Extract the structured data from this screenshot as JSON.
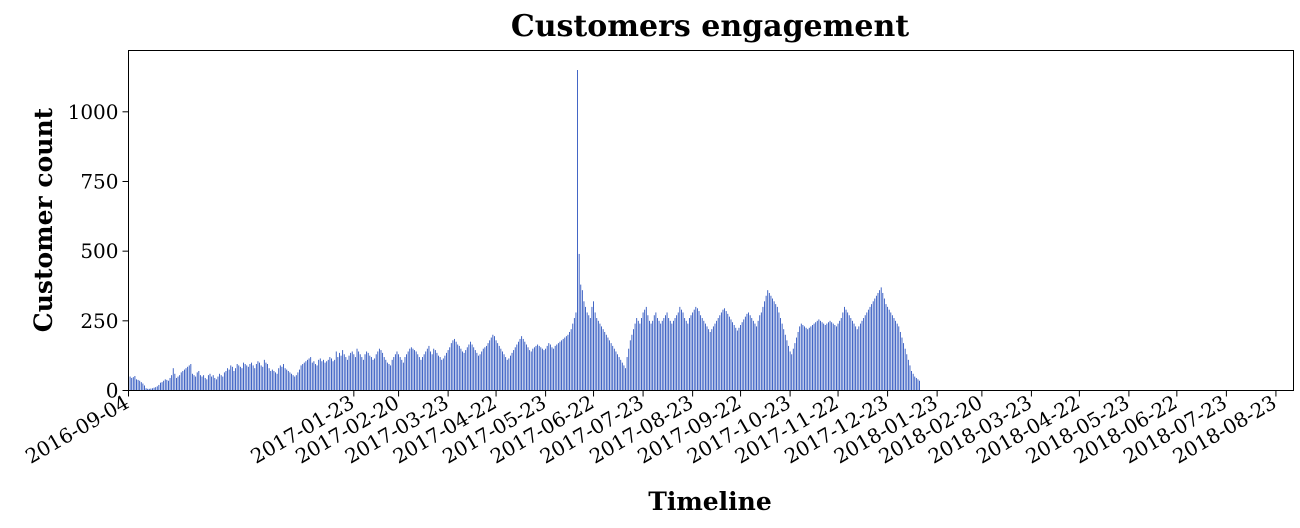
{
  "chart_data": {
    "type": "bar",
    "title": "Customers engagement",
    "xlabel": "Timeline",
    "ylabel": "Customer count",
    "yticks": [
      0,
      250,
      500,
      750,
      1000
    ],
    "ylim": [
      0,
      1220
    ],
    "xlim": [
      "2016-09-04",
      "2018-09-03"
    ],
    "grid": false,
    "legend": "none",
    "bar_color": "#2a52be",
    "xticks": [
      "2016-09-04",
      "2017-01-23",
      "2017-02-20",
      "2017-03-23",
      "2017-04-22",
      "2017-05-23",
      "2017-06-22",
      "2017-07-23",
      "2017-08-23",
      "2017-09-22",
      "2017-10-23",
      "2017-11-22",
      "2017-12-23",
      "2018-01-23",
      "2018-02-20",
      "2018-03-23",
      "2018-04-22",
      "2018-05-23",
      "2018-06-22",
      "2018-07-23",
      "2018-08-23"
    ],
    "x_start": "2016-09-04",
    "values": [
      60,
      50,
      45,
      48,
      52,
      40,
      38,
      35,
      30,
      25,
      18,
      8,
      6,
      6,
      7,
      8,
      10,
      12,
      15,
      20,
      28,
      30,
      35,
      40,
      38,
      35,
      45,
      55,
      80,
      60,
      45,
      50,
      55,
      65,
      70,
      75,
      80,
      85,
      90,
      95,
      60,
      55,
      50,
      65,
      70,
      55,
      50,
      55,
      45,
      40,
      55,
      60,
      50,
      55,
      45,
      40,
      50,
      60,
      55,
      50,
      65,
      70,
      80,
      75,
      90,
      85,
      70,
      80,
      95,
      90,
      85,
      80,
      100,
      95,
      90,
      85,
      95,
      100,
      90,
      80,
      95,
      105,
      100,
      90,
      85,
      110,
      100,
      95,
      80,
      70,
      75,
      70,
      65,
      60,
      80,
      90,
      85,
      95,
      80,
      75,
      70,
      65,
      60,
      55,
      50,
      55,
      65,
      75,
      90,
      95,
      100,
      105,
      110,
      115,
      120,
      100,
      105,
      95,
      90,
      110,
      115,
      105,
      110,
      100,
      105,
      110,
      120,
      115,
      105,
      110,
      140,
      120,
      135,
      125,
      145,
      130,
      120,
      110,
      125,
      135,
      140,
      130,
      120,
      150,
      140,
      130,
      120,
      110,
      130,
      140,
      135,
      125,
      120,
      110,
      115,
      130,
      140,
      150,
      145,
      135,
      120,
      110,
      100,
      95,
      90,
      110,
      120,
      130,
      140,
      130,
      120,
      110,
      100,
      120,
      130,
      140,
      150,
      155,
      150,
      145,
      140,
      130,
      120,
      110,
      120,
      130,
      140,
      150,
      160,
      140,
      130,
      150,
      145,
      135,
      125,
      120,
      110,
      115,
      125,
      135,
      145,
      155,
      170,
      180,
      185,
      175,
      165,
      160,
      150,
      140,
      135,
      145,
      155,
      165,
      175,
      165,
      155,
      145,
      135,
      125,
      130,
      140,
      150,
      155,
      160,
      170,
      180,
      190,
      200,
      195,
      180,
      170,
      160,
      150,
      140,
      130,
      120,
      110,
      115,
      125,
      135,
      145,
      155,
      165,
      175,
      185,
      195,
      185,
      175,
      165,
      155,
      145,
      140,
      150,
      155,
      160,
      165,
      160,
      155,
      150,
      145,
      150,
      160,
      170,
      165,
      155,
      150,
      160,
      165,
      170,
      175,
      180,
      185,
      190,
      195,
      200,
      210,
      220,
      240,
      260,
      280,
      1150,
      490,
      380,
      360,
      320,
      300,
      280,
      270,
      260,
      300,
      320,
      280,
      260,
      250,
      240,
      230,
      220,
      210,
      200,
      190,
      180,
      170,
      160,
      150,
      140,
      130,
      120,
      110,
      100,
      90,
      80,
      120,
      150,
      180,
      200,
      220,
      240,
      260,
      250,
      240,
      260,
      280,
      290,
      300,
      270,
      250,
      240,
      250,
      270,
      280,
      260,
      250,
      240,
      250,
      260,
      270,
      280,
      260,
      250,
      240,
      250,
      260,
      270,
      280,
      300,
      290,
      280,
      260,
      250,
      240,
      260,
      270,
      280,
      290,
      300,
      295,
      285,
      270,
      260,
      250,
      240,
      230,
      220,
      210,
      220,
      230,
      240,
      250,
      260,
      270,
      280,
      290,
      295,
      285,
      275,
      265,
      255,
      245,
      235,
      225,
      215,
      225,
      235,
      245,
      255,
      265,
      275,
      280,
      270,
      260,
      250,
      240,
      230,
      250,
      270,
      280,
      300,
      320,
      340,
      360,
      350,
      340,
      330,
      320,
      310,
      300,
      280,
      260,
      240,
      220,
      200,
      180,
      160,
      140,
      130,
      150,
      170,
      190,
      210,
      230,
      240,
      235,
      230,
      225,
      220,
      225,
      230,
      235,
      240,
      245,
      250,
      255,
      250,
      245,
      240,
      235,
      240,
      245,
      250,
      245,
      240,
      235,
      230,
      240,
      250,
      260,
      280,
      300,
      290,
      280,
      270,
      260,
      250,
      240,
      230,
      220,
      230,
      240,
      250,
      260,
      270,
      280,
      290,
      300,
      310,
      320,
      330,
      340,
      350,
      360,
      370,
      350,
      330,
      310,
      300,
      290,
      280,
      270,
      260,
      250,
      240,
      230,
      210,
      190,
      170,
      150,
      130,
      110,
      90,
      70,
      60,
      50,
      45,
      40,
      35
    ]
  }
}
